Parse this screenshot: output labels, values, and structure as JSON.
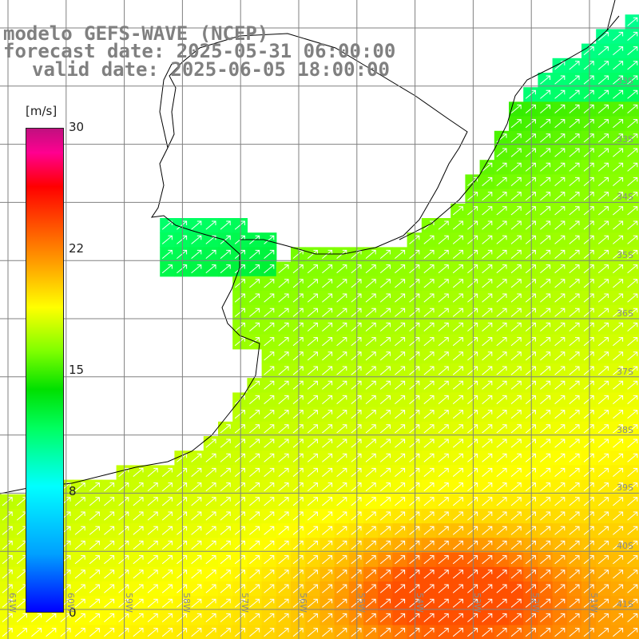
{
  "title": {
    "line1": "modelo GEFS-WAVE (NCEP)",
    "line2": "forecast date: 2025-05-31 06:00:00",
    "line3": "valid date: 2025-06-05 18:00:00"
  },
  "colorbar": {
    "units": "[m/s]",
    "min": 0,
    "max": 30,
    "ticks": [
      "30",
      "22",
      "15",
      "8",
      "0"
    ],
    "tick_values": [
      30,
      22,
      15,
      8,
      0
    ]
  },
  "lat_labels": [
    "33S",
    "34S",
    "35S",
    "36S",
    "37S",
    "38S",
    "39S",
    "40S",
    "41S"
  ],
  "lon_labels": [
    "61W",
    "60W",
    "59W",
    "58W",
    "57W",
    "56W",
    "55W",
    "54W",
    "53W",
    "52W",
    "51W"
  ],
  "colors": {
    "land": "#ffffff",
    "coast": "#000000",
    "grid": "#808080",
    "arrow": "#ffffff"
  }
}
